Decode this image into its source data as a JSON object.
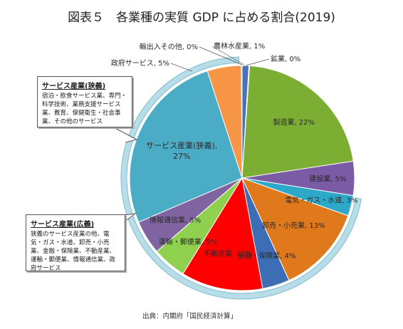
{
  "title": "図表５　各業種の実質 GDP に占める割合(2019)",
  "source": "出典：内閣府「国民経済計算」",
  "chart_data": {
    "type": "pie",
    "title": "図表５　各業種の実質 GDP に占める割合(2019)",
    "slices": [
      {
        "label": "農林水産業, 1%",
        "value": 1,
        "color": "#4a72b8"
      },
      {
        "label": "鉱業, 0%",
        "value": 0.1,
        "color": "#8c4a1e"
      },
      {
        "label": "製造業, 22%",
        "value": 22,
        "color": "#7bae33"
      },
      {
        "label": "建設業, 5%",
        "value": 5,
        "color": "#7b5aa6"
      },
      {
        "label": "電気・ガス・水道, 3%",
        "value": 3,
        "color": "#2ea8c8"
      },
      {
        "label": "卸売・小売業, 13%",
        "value": 13,
        "color": "#e0781c"
      },
      {
        "label": "金融・保険業, 4%",
        "value": 4,
        "color": "#3d6db5"
      },
      {
        "label": "不動産業, 12%",
        "value": 12,
        "color": "#ff0000"
      },
      {
        "label": "運輸・郵便業, 5%",
        "value": 5,
        "color": "#8fd14f"
      },
      {
        "label": "情報通信業, 5%",
        "value": 5,
        "color": "#8064a2"
      },
      {
        "label": "サービス産業(狭義), 27%",
        "value": 27,
        "color": "#4bacc6"
      },
      {
        "label": "政府サービス, 5%",
        "value": 5,
        "color": "#f79646"
      },
      {
        "label": "輸出入その他, 0%",
        "value": 0.1,
        "color": "#1f3f7a"
      }
    ]
  },
  "callouts": {
    "narrow": {
      "title": "サービス産業(狭義)",
      "body": "宿泊・飲食サービス業、専門・科学技術、業務支援サービス業、教育、保健衛生・社会事業、その他のサービス"
    },
    "broad": {
      "title": "サービス産業(広義)",
      "body": "狭義のサービス産業の他、電気・ガス・水道、卸売・小売業、金融・保険業、不動産業、運輸・郵便業、情報通信業、政府サービス"
    }
  },
  "colors": {
    "ring": "#b7dde8",
    "ring_stroke": "#7fbccc"
  }
}
